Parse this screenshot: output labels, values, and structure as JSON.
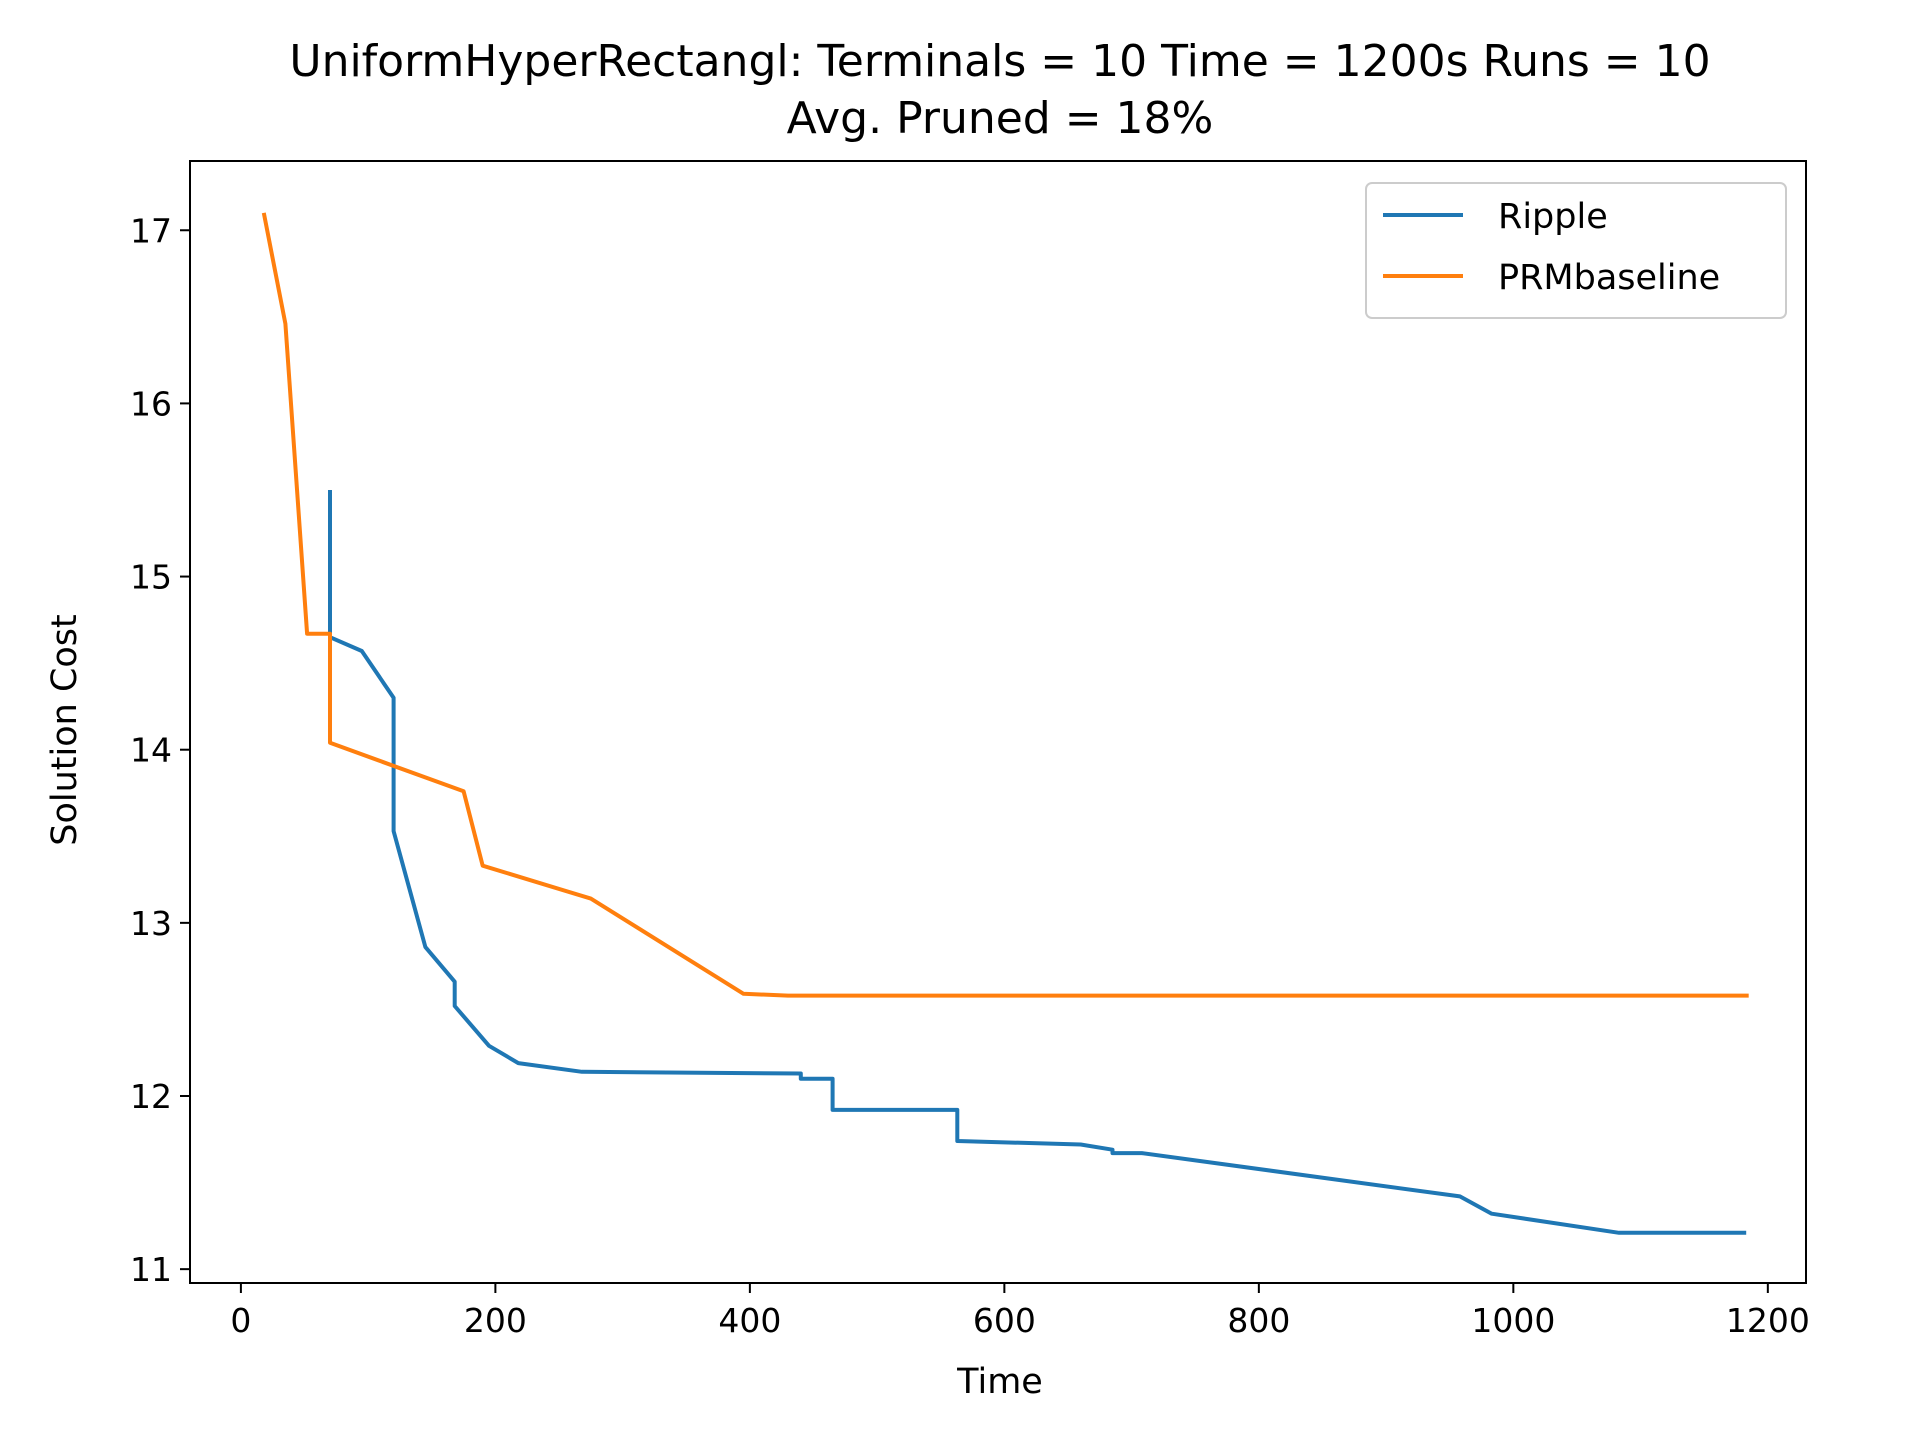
{
  "chart_data": {
    "type": "line",
    "title_line1": "UniformHyperRectangl:  Terminals = 10  Time = 1200s  Runs = 10",
    "title_line2": "Avg. Pruned = 18%",
    "xlabel": "Time",
    "ylabel": "Solution Cost",
    "xlim": [
      -40,
      1230
    ],
    "ylim": [
      10.92,
      17.4
    ],
    "xticks": [
      0,
      200,
      400,
      600,
      800,
      1000,
      1200
    ],
    "yticks": [
      11,
      12,
      13,
      14,
      15,
      16,
      17
    ],
    "grid": false,
    "legend_position": "upper right",
    "series": [
      {
        "name": "Ripple",
        "color": "#1f77b4",
        "points": [
          [
            70,
            15.5
          ],
          [
            70,
            14.65
          ],
          [
            95,
            14.57
          ],
          [
            120,
            14.3
          ],
          [
            120,
            13.53
          ],
          [
            145,
            12.86
          ],
          [
            168,
            12.66
          ],
          [
            168,
            12.52
          ],
          [
            195,
            12.29
          ],
          [
            218,
            12.19
          ],
          [
            268,
            12.14
          ],
          [
            440,
            12.13
          ],
          [
            440,
            12.1
          ],
          [
            465,
            12.1
          ],
          [
            465,
            11.92
          ],
          [
            563,
            11.92
          ],
          [
            563,
            11.74
          ],
          [
            660,
            11.72
          ],
          [
            685,
            11.69
          ],
          [
            685,
            11.67
          ],
          [
            708,
            11.67
          ],
          [
            958,
            11.42
          ],
          [
            983,
            11.32
          ],
          [
            1083,
            11.21
          ],
          [
            1183,
            11.21
          ]
        ]
      },
      {
        "name": "PRMbaseline",
        "color": "#ff7f0e",
        "points": [
          [
            18,
            17.1
          ],
          [
            35,
            16.46
          ],
          [
            52,
            14.67
          ],
          [
            70,
            14.67
          ],
          [
            70,
            14.04
          ],
          [
            175,
            13.76
          ],
          [
            190,
            13.33
          ],
          [
            275,
            13.14
          ],
          [
            395,
            12.59
          ],
          [
            430,
            12.58
          ],
          [
            1185,
            12.58
          ]
        ]
      }
    ]
  }
}
